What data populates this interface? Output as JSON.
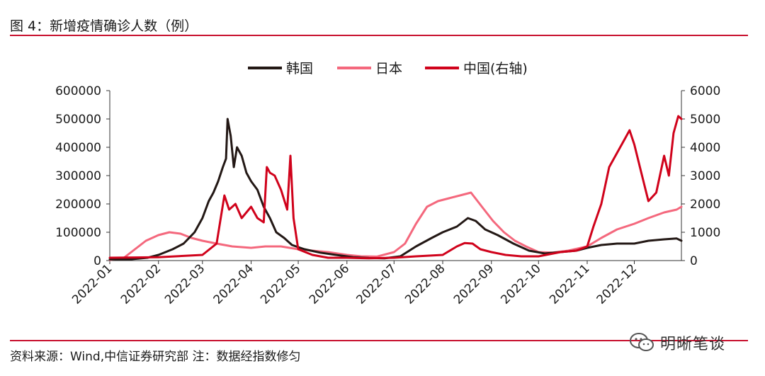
{
  "header": {
    "title": "图 4：新增疫情确诊人数（例）"
  },
  "footer": {
    "source": "资料来源：Wind,中信证券研究部 注：数据经指数修匀",
    "watermark": "明晰笔谈",
    "watermark_icon": "wechat-icon"
  },
  "colors": {
    "korea": "#231815",
    "japan": "#f4687d",
    "china": "#d0021b",
    "rule": "#c8102e"
  },
  "chart_data": {
    "type": "line",
    "title": "",
    "xlabel": "",
    "ylabel": "",
    "y2label": "",
    "ylim": [
      0,
      600000
    ],
    "y2lim": [
      0,
      6000
    ],
    "yticks": [
      "0",
      "100000",
      "200000",
      "300000",
      "400000",
      "500000",
      "600000"
    ],
    "y2ticks": [
      "0",
      "1000",
      "2000",
      "3000",
      "4000",
      "5000",
      "6000"
    ],
    "xtick_labels": [
      "2022-01",
      "2022-02",
      "2022-03",
      "2022-04",
      "2022-05",
      "2022-06",
      "2022-07",
      "2022-08",
      "2022-09",
      "2022-10",
      "2022-11",
      "2022-12"
    ],
    "x_start": "2022-01-01",
    "x_end": "2022-12-31",
    "legend_position": "top-center",
    "grid": false,
    "series": [
      {
        "name": "韩国",
        "axis": "left",
        "color": "#231815",
        "points": [
          [
            "2022-01-01",
            4000
          ],
          [
            "2022-01-15",
            5000
          ],
          [
            "2022-01-25",
            10000
          ],
          [
            "2022-02-01",
            20000
          ],
          [
            "2022-02-10",
            40000
          ],
          [
            "2022-02-17",
            60000
          ],
          [
            "2022-02-24",
            100000
          ],
          [
            "2022-03-01",
            150000
          ],
          [
            "2022-03-05",
            210000
          ],
          [
            "2022-03-08",
            240000
          ],
          [
            "2022-03-11",
            280000
          ],
          [
            "2022-03-14",
            330000
          ],
          [
            "2022-03-16",
            360000
          ],
          [
            "2022-03-17",
            500000
          ],
          [
            "2022-03-19",
            440000
          ],
          [
            "2022-03-21",
            330000
          ],
          [
            "2022-03-23",
            400000
          ],
          [
            "2022-03-26",
            370000
          ],
          [
            "2022-03-29",
            310000
          ],
          [
            "2022-04-01",
            280000
          ],
          [
            "2022-04-05",
            250000
          ],
          [
            "2022-04-09",
            190000
          ],
          [
            "2022-04-13",
            150000
          ],
          [
            "2022-04-17",
            100000
          ],
          [
            "2022-04-22",
            80000
          ],
          [
            "2022-04-27",
            55000
          ],
          [
            "2022-05-05",
            40000
          ],
          [
            "2022-05-15",
            28000
          ],
          [
            "2022-05-25",
            20000
          ],
          [
            "2022-06-05",
            12000
          ],
          [
            "2022-06-15",
            9000
          ],
          [
            "2022-06-25",
            8000
          ],
          [
            "2022-07-05",
            15000
          ],
          [
            "2022-07-15",
            50000
          ],
          [
            "2022-07-25",
            80000
          ],
          [
            "2022-08-01",
            100000
          ],
          [
            "2022-08-10",
            120000
          ],
          [
            "2022-08-17",
            150000
          ],
          [
            "2022-08-22",
            140000
          ],
          [
            "2022-08-28",
            110000
          ],
          [
            "2022-09-05",
            90000
          ],
          [
            "2022-09-15",
            60000
          ],
          [
            "2022-09-25",
            35000
          ],
          [
            "2022-10-05",
            25000
          ],
          [
            "2022-10-15",
            30000
          ],
          [
            "2022-10-25",
            35000
          ],
          [
            "2022-11-01",
            45000
          ],
          [
            "2022-11-10",
            55000
          ],
          [
            "2022-11-20",
            60000
          ],
          [
            "2022-12-01",
            60000
          ],
          [
            "2022-12-10",
            70000
          ],
          [
            "2022-12-20",
            75000
          ],
          [
            "2022-12-28",
            78000
          ],
          [
            "2022-12-31",
            70000
          ]
        ]
      },
      {
        "name": "日本",
        "axis": "left",
        "color": "#f4687d",
        "points": [
          [
            "2022-01-01",
            2000
          ],
          [
            "2022-01-10",
            10000
          ],
          [
            "2022-01-17",
            40000
          ],
          [
            "2022-01-24",
            70000
          ],
          [
            "2022-02-01",
            90000
          ],
          [
            "2022-02-08",
            100000
          ],
          [
            "2022-02-15",
            95000
          ],
          [
            "2022-02-22",
            80000
          ],
          [
            "2022-03-01",
            70000
          ],
          [
            "2022-03-10",
            60000
          ],
          [
            "2022-03-20",
            50000
          ],
          [
            "2022-04-01",
            45000
          ],
          [
            "2022-04-10",
            50000
          ],
          [
            "2022-04-20",
            50000
          ],
          [
            "2022-05-01",
            40000
          ],
          [
            "2022-05-10",
            35000
          ],
          [
            "2022-05-20",
            30000
          ],
          [
            "2022-06-01",
            20000
          ],
          [
            "2022-06-10",
            15000
          ],
          [
            "2022-06-20",
            14000
          ],
          [
            "2022-07-01",
            30000
          ],
          [
            "2022-07-08",
            60000
          ],
          [
            "2022-07-15",
            130000
          ],
          [
            "2022-07-22",
            190000
          ],
          [
            "2022-07-29",
            210000
          ],
          [
            "2022-08-05",
            220000
          ],
          [
            "2022-08-12",
            230000
          ],
          [
            "2022-08-19",
            240000
          ],
          [
            "2022-08-26",
            190000
          ],
          [
            "2022-09-02",
            140000
          ],
          [
            "2022-09-09",
            100000
          ],
          [
            "2022-09-16",
            70000
          ],
          [
            "2022-09-23",
            50000
          ],
          [
            "2022-10-01",
            30000
          ],
          [
            "2022-10-10",
            28000
          ],
          [
            "2022-10-20",
            35000
          ],
          [
            "2022-11-01",
            50000
          ],
          [
            "2022-11-10",
            80000
          ],
          [
            "2022-11-20",
            110000
          ],
          [
            "2022-12-01",
            130000
          ],
          [
            "2022-12-10",
            150000
          ],
          [
            "2022-12-20",
            170000
          ],
          [
            "2022-12-28",
            180000
          ],
          [
            "2022-12-31",
            190000
          ]
        ]
      },
      {
        "name": "中国(右轴)",
        "axis": "right",
        "color": "#d0021b",
        "points": [
          [
            "2022-01-01",
            100
          ],
          [
            "2022-02-01",
            120
          ],
          [
            "2022-03-01",
            200
          ],
          [
            "2022-03-10",
            600
          ],
          [
            "2022-03-15",
            2300
          ],
          [
            "2022-03-18",
            1800
          ],
          [
            "2022-03-22",
            2000
          ],
          [
            "2022-03-26",
            1500
          ],
          [
            "2022-04-01",
            1900
          ],
          [
            "2022-04-05",
            1500
          ],
          [
            "2022-04-09",
            1350
          ],
          [
            "2022-04-11",
            3300
          ],
          [
            "2022-04-13",
            3100
          ],
          [
            "2022-04-16",
            3000
          ],
          [
            "2022-04-20",
            2500
          ],
          [
            "2022-04-24",
            1800
          ],
          [
            "2022-04-26",
            3700
          ],
          [
            "2022-04-28",
            1500
          ],
          [
            "2022-05-01",
            400
          ],
          [
            "2022-05-10",
            200
          ],
          [
            "2022-05-20",
            100
          ],
          [
            "2022-06-01",
            100
          ],
          [
            "2022-06-15",
            80
          ],
          [
            "2022-07-01",
            100
          ],
          [
            "2022-07-15",
            150
          ],
          [
            "2022-08-01",
            200
          ],
          [
            "2022-08-10",
            500
          ],
          [
            "2022-08-15",
            620
          ],
          [
            "2022-08-20",
            600
          ],
          [
            "2022-08-25",
            400
          ],
          [
            "2022-09-01",
            300
          ],
          [
            "2022-09-10",
            200
          ],
          [
            "2022-09-20",
            150
          ],
          [
            "2022-10-01",
            150
          ],
          [
            "2022-10-15",
            300
          ],
          [
            "2022-10-25",
            350
          ],
          [
            "2022-11-01",
            500
          ],
          [
            "2022-11-05",
            1200
          ],
          [
            "2022-11-10",
            2000
          ],
          [
            "2022-11-15",
            3300
          ],
          [
            "2022-11-20",
            3800
          ],
          [
            "2022-11-25",
            4300
          ],
          [
            "2022-11-28",
            4600
          ],
          [
            "2022-12-01",
            4100
          ],
          [
            "2022-12-05",
            3200
          ],
          [
            "2022-12-10",
            2100
          ],
          [
            "2022-12-15",
            2400
          ],
          [
            "2022-12-20",
            3700
          ],
          [
            "2022-12-23",
            3000
          ],
          [
            "2022-12-26",
            4500
          ],
          [
            "2022-12-29",
            5100
          ],
          [
            "2022-12-31",
            5000
          ]
        ]
      }
    ]
  }
}
